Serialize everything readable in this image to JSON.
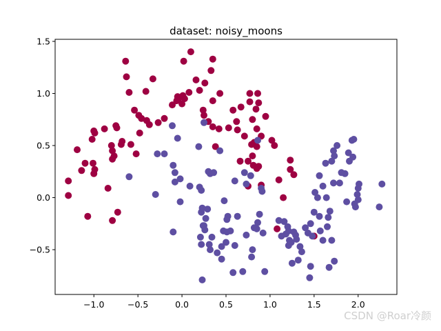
{
  "chart_data": {
    "type": "scatter",
    "title": "dataset: noisy_moons",
    "xlabel": "",
    "ylabel": "",
    "xlim": [
      -1.44,
      2.44
    ],
    "ylim": [
      -0.93,
      1.52
    ],
    "xticks": [
      -1.0,
      -0.5,
      0.0,
      0.5,
      1.0,
      1.5,
      2.0
    ],
    "yticks": [
      -0.5,
      0.0,
      0.5,
      1.0,
      1.5
    ],
    "grid": false,
    "legend": "none",
    "series": [
      {
        "color": "#9e0142",
        "points": [
          [
            -1.29,
            0.16
          ],
          [
            -1.29,
            0.02
          ],
          [
            -1.19,
            0.46
          ],
          [
            -1.14,
            0.26
          ],
          [
            -1.1,
            0.33
          ],
          [
            -1.01,
            0.33
          ],
          [
            -1.0,
            0.64
          ],
          [
            -0.99,
            0.62
          ],
          [
            -0.99,
            0.27
          ],
          [
            -1.0,
            0.23
          ],
          [
            -1.02,
            0.56
          ],
          [
            -1.07,
            -0.18
          ],
          [
            -0.88,
            0.66
          ],
          [
            -0.84,
            0.09
          ],
          [
            -0.8,
            0.5
          ],
          [
            -0.79,
            0.45
          ],
          [
            -0.79,
            0.37
          ],
          [
            -0.77,
            0.4
          ],
          [
            -0.75,
            0.69
          ],
          [
            -0.74,
            0.67
          ],
          [
            -0.79,
            -0.22
          ],
          [
            -0.73,
            -0.14
          ],
          [
            -0.69,
            0.51
          ],
          [
            -0.68,
            0.54
          ],
          [
            -0.64,
            1.31
          ],
          [
            -0.63,
            1.16
          ],
          [
            -0.6,
            1.01
          ],
          [
            -0.58,
            0.51
          ],
          [
            -0.54,
            0.84
          ],
          [
            -0.52,
            0.42
          ],
          [
            -0.49,
            0.79
          ],
          [
            -0.48,
            0.62
          ],
          [
            -0.46,
            0.76
          ],
          [
            -0.41,
            1.02
          ],
          [
            -0.4,
            0.74
          ],
          [
            -0.37,
            0.7
          ],
          [
            -0.33,
            1.14
          ],
          [
            -0.27,
            0.72
          ],
          [
            -0.2,
            0.76
          ],
          [
            -0.11,
            0.89
          ],
          [
            -0.06,
            0.93
          ],
          [
            -0.05,
            0.97
          ],
          [
            -0.04,
            0.95
          ],
          [
            0.0,
            0.9
          ],
          [
            0.01,
            0.98
          ],
          [
            0.02,
            1.31
          ],
          [
            0.03,
            0.95
          ],
          [
            0.08,
            1.01
          ],
          [
            0.1,
            1.4
          ],
          [
            0.16,
            1.13
          ],
          [
            0.2,
            1.03
          ],
          [
            0.24,
            0.84
          ],
          [
            0.25,
            0.79
          ],
          [
            0.26,
            1.1
          ],
          [
            0.3,
            0.73
          ],
          [
            0.33,
            1.22
          ],
          [
            0.35,
            1.33
          ],
          [
            0.35,
            0.93
          ],
          [
            0.35,
            0.68
          ],
          [
            0.38,
            0.49
          ],
          [
            0.42,
            0.66
          ],
          [
            0.43,
            1.0
          ],
          [
            0.53,
            0.67
          ],
          [
            0.58,
            0.84
          ],
          [
            0.62,
            0.73
          ],
          [
            0.63,
            0.65
          ],
          [
            0.66,
            0.35
          ],
          [
            0.67,
            0.87
          ],
          [
            0.71,
            0.59
          ],
          [
            0.79,
            0.51
          ],
          [
            0.8,
            0.75
          ],
          [
            0.8,
            0.4
          ],
          [
            0.81,
            0.31
          ],
          [
            0.82,
            0.53
          ],
          [
            0.84,
            0.85
          ],
          [
            0.85,
            0.66
          ],
          [
            0.85,
            0.49
          ],
          [
            0.85,
            0.28
          ],
          [
            0.87,
            0.3
          ],
          [
            0.9,
            0.12
          ],
          [
            0.9,
            0.59
          ],
          [
            0.95,
            0.78
          ],
          [
            0.75,
            0.11
          ],
          [
            0.75,
            0.35
          ],
          [
            0.77,
            0.92
          ],
          [
            0.77,
            1.0
          ],
          [
            0.86,
            1.0
          ],
          [
            0.87,
            0.91
          ],
          [
            1.02,
            0.55
          ],
          [
            1.05,
            0.5
          ],
          [
            1.1,
            0.17
          ],
          [
            1.15,
            0.0
          ],
          [
            1.23,
            0.36
          ],
          [
            1.23,
            0.27
          ],
          [
            1.27,
            0.22
          ],
          [
            1.08,
            -0.3
          ],
          [
            1.5,
            -0.37
          ]
        ]
      },
      {
        "color": "#5e4fa2",
        "points": [
          [
            -0.6,
            0.2
          ],
          [
            -0.3,
            0.03
          ],
          [
            -0.28,
            0.42
          ],
          [
            -0.2,
            0.42
          ],
          [
            -0.11,
            0.69
          ],
          [
            -0.1,
            0.31
          ],
          [
            -0.08,
            0.24
          ],
          [
            -0.05,
            0.57
          ],
          [
            -0.02,
            -0.04
          ],
          [
            -0.1,
            -0.33
          ],
          [
            -0.08,
            0.15
          ],
          [
            -0.02,
            0.18
          ],
          [
            0.09,
            0.11
          ],
          [
            0.19,
            0.49
          ],
          [
            0.2,
            0.1
          ],
          [
            0.22,
            0.07
          ],
          [
            0.25,
            0.72
          ],
          [
            0.3,
            0.25
          ],
          [
            0.32,
            0.23
          ],
          [
            0.22,
            -0.14
          ],
          [
            0.23,
            -0.1
          ],
          [
            0.25,
            -0.27
          ],
          [
            0.27,
            -0.2
          ],
          [
            0.29,
            -0.11
          ],
          [
            0.21,
            -0.38
          ],
          [
            0.22,
            -0.45
          ],
          [
            0.24,
            -0.27
          ],
          [
            0.26,
            -0.31
          ],
          [
            0.31,
            -0.45
          ],
          [
            0.32,
            -0.5
          ],
          [
            0.34,
            -0.38
          ],
          [
            0.23,
            -0.79
          ],
          [
            0.36,
            0.24
          ],
          [
            0.43,
            0.45
          ],
          [
            0.4,
            -0.53
          ],
          [
            0.45,
            -0.47
          ],
          [
            0.45,
            -0.59
          ],
          [
            0.48,
            -0.03
          ],
          [
            0.47,
            -0.32
          ],
          [
            0.5,
            -0.43
          ],
          [
            0.51,
            -0.33
          ],
          [
            0.52,
            -0.18
          ],
          [
            0.51,
            -0.21
          ],
          [
            0.55,
            -0.32
          ],
          [
            0.58,
            -0.72
          ],
          [
            0.6,
            -0.46
          ],
          [
            0.6,
            0.16
          ],
          [
            0.63,
            -0.18
          ],
          [
            0.69,
            -0.71
          ],
          [
            0.71,
            0.24
          ],
          [
            0.78,
            0.21
          ],
          [
            0.73,
            0.13
          ],
          [
            0.73,
            -0.36
          ],
          [
            0.79,
            -0.57
          ],
          [
            0.8,
            -0.5
          ],
          [
            0.82,
            -0.29
          ],
          [
            0.85,
            -0.3
          ],
          [
            0.9,
            0.09
          ],
          [
            0.91,
            0.06
          ],
          [
            0.92,
            -0.34
          ],
          [
            0.94,
            -0.71
          ],
          [
            0.86,
            -0.24
          ],
          [
            1.13,
            -0.37
          ],
          [
            1.16,
            -0.23
          ],
          [
            1.18,
            -0.35
          ],
          [
            1.21,
            -0.32
          ],
          [
            1.21,
            -0.46
          ],
          [
            1.22,
            -0.41
          ],
          [
            1.24,
            -0.43
          ],
          [
            1.27,
            -0.33
          ],
          [
            1.29,
            -0.36
          ],
          [
            1.32,
            -0.6
          ],
          [
            1.34,
            -0.47
          ],
          [
            1.36,
            -0.52
          ],
          [
            1.43,
            -0.34
          ],
          [
            1.45,
            -0.77
          ],
          [
            1.46,
            -0.25
          ],
          [
            1.46,
            -0.66
          ],
          [
            1.48,
            -0.37
          ],
          [
            1.5,
            -0.14
          ],
          [
            1.51,
            0.05
          ],
          [
            1.54,
            0.0
          ],
          [
            1.56,
            -0.18
          ],
          [
            1.6,
            -0.41
          ],
          [
            1.64,
            0.0
          ],
          [
            1.65,
            -0.28
          ],
          [
            1.66,
            -0.19
          ],
          [
            1.68,
            -0.13
          ],
          [
            1.72,
            0.14
          ],
          [
            1.73,
            -0.61
          ],
          [
            1.67,
            -0.67
          ],
          [
            1.7,
            0.35
          ],
          [
            1.72,
            0.45
          ],
          [
            1.73,
            0.4
          ],
          [
            1.76,
            0.5
          ],
          [
            1.79,
            0.14
          ],
          [
            1.81,
            0.24
          ],
          [
            1.85,
            0.23
          ],
          [
            1.87,
            -0.04
          ],
          [
            1.89,
            0.43
          ],
          [
            1.93,
            0.55
          ],
          [
            1.95,
            0.56
          ],
          [
            1.96,
            -0.06
          ],
          [
            1.97,
            -0.09
          ],
          [
            1.99,
            0.03
          ],
          [
            2.0,
            0.09
          ],
          [
            2.0,
            -0.02
          ],
          [
            1.9,
            0.35
          ],
          [
            1.94,
            0.39
          ],
          [
            2.01,
            0.13
          ],
          [
            2.24,
            -0.09
          ],
          [
            2.27,
            0.13
          ],
          [
            1.56,
            0.21
          ],
          [
            1.6,
            0.11
          ],
          [
            1.63,
            0.33
          ],
          [
            1.57,
            -0.32
          ],
          [
            1.7,
            -0.41
          ],
          [
            1.25,
            -0.63
          ],
          [
            1.3,
            -0.4
          ],
          [
            0.86,
            0.55
          ],
          [
            1.1,
            -0.22
          ],
          [
            1.2,
            -0.28
          ],
          [
            0.88,
            -0.16
          ],
          [
            1.4,
            -0.29
          ]
        ]
      }
    ]
  },
  "watermark": "CSDN @Roar冷颜"
}
